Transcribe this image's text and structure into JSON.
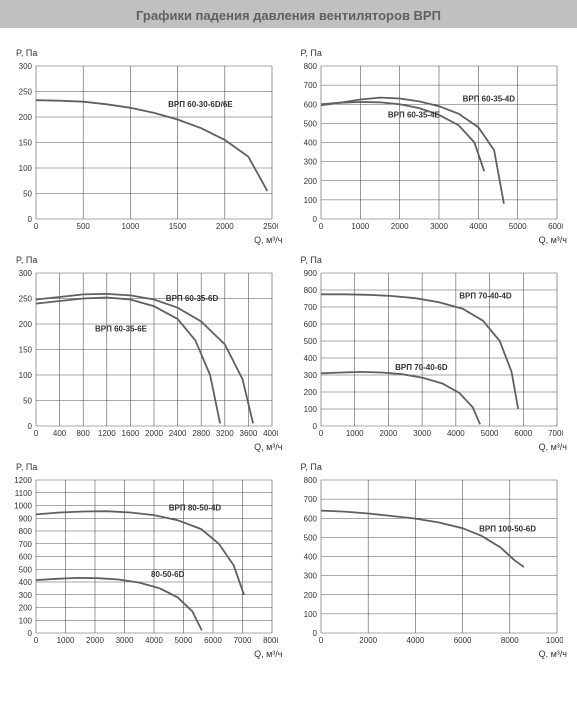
{
  "title": "Графики падения давления вентиляторов ВРП",
  "layout": {
    "cols": 2,
    "rows": 3
  },
  "axis_label_y": "P, Па",
  "axis_label_x": "Q, м³/ч",
  "chart_styling": {
    "background_color": "#ffffff",
    "grid_color": "#555555",
    "curve_color": "#606060",
    "curve_width": 1.8,
    "tick_fontsize": 8,
    "label_fontsize": 9,
    "title_bg": "#c0c0c0",
    "title_color": "#606060"
  },
  "charts": [
    {
      "id": "c1",
      "xlim": [
        0,
        2500
      ],
      "xtick_step": 500,
      "ylim": [
        0,
        300
      ],
      "ytick_step": 50,
      "series": [
        {
          "label": "ВРП 60-30-6D/6E",
          "label_xy": [
            1400,
            220
          ],
          "points": [
            [
              0,
              233
            ],
            [
              250,
              232
            ],
            [
              500,
              230
            ],
            [
              750,
              225
            ],
            [
              1000,
              218
            ],
            [
              1250,
              208
            ],
            [
              1500,
              195
            ],
            [
              1750,
              178
            ],
            [
              2000,
              155
            ],
            [
              2250,
              122
            ],
            [
              2450,
              55
            ]
          ]
        }
      ]
    },
    {
      "id": "c2",
      "xlim": [
        0,
        6000
      ],
      "xtick_step": 1000,
      "ylim": [
        0,
        800
      ],
      "ytick_step": 100,
      "series": [
        {
          "label": "ВРП 60-35-4D",
          "label_xy": [
            3600,
            615
          ],
          "points": [
            [
              0,
              595
            ],
            [
              500,
              608
            ],
            [
              1000,
              625
            ],
            [
              1500,
              635
            ],
            [
              2000,
              630
            ],
            [
              2500,
              615
            ],
            [
              3000,
              590
            ],
            [
              3500,
              550
            ],
            [
              4000,
              480
            ],
            [
              4400,
              360
            ],
            [
              4650,
              80
            ]
          ]
        },
        {
          "label": "ВРП 60-35-4E",
          "label_xy": [
            1700,
            530
          ],
          "points": [
            [
              0,
              600
            ],
            [
              500,
              608
            ],
            [
              1000,
              612
            ],
            [
              1500,
              610
            ],
            [
              2000,
              600
            ],
            [
              2500,
              580
            ],
            [
              3000,
              545
            ],
            [
              3500,
              490
            ],
            [
              3900,
              400
            ],
            [
              4150,
              250
            ]
          ]
        }
      ]
    },
    {
      "id": "c3",
      "xlim": [
        0,
        4000
      ],
      "xtick_step": 400,
      "ylim": [
        0,
        300
      ],
      "ytick_step": 50,
      "series": [
        {
          "label": "ВРП 60-35-6D",
          "label_xy": [
            2200,
            245
          ],
          "points": [
            [
              0,
              248
            ],
            [
              400,
              253
            ],
            [
              800,
              258
            ],
            [
              1200,
              259
            ],
            [
              1600,
              256
            ],
            [
              2000,
              248
            ],
            [
              2400,
              232
            ],
            [
              2800,
              205
            ],
            [
              3200,
              160
            ],
            [
              3500,
              92
            ],
            [
              3680,
              5
            ]
          ]
        },
        {
          "label": "ВРП 60-35-6E",
          "label_xy": [
            1000,
            185
          ],
          "points": [
            [
              0,
              240
            ],
            [
              400,
              245
            ],
            [
              800,
              250
            ],
            [
              1200,
              252
            ],
            [
              1600,
              248
            ],
            [
              2000,
              235
            ],
            [
              2400,
              210
            ],
            [
              2700,
              168
            ],
            [
              2950,
              100
            ],
            [
              3120,
              5
            ]
          ]
        }
      ]
    },
    {
      "id": "c4",
      "xlim": [
        0,
        7000
      ],
      "xtick_step": 1000,
      "ylim": [
        0,
        900
      ],
      "ytick_step": 100,
      "series": [
        {
          "label": "ВРП 70-40-4D",
          "label_xy": [
            4100,
            750
          ],
          "points": [
            [
              0,
              775
            ],
            [
              700,
              775
            ],
            [
              1400,
              772
            ],
            [
              2100,
              765
            ],
            [
              2800,
              752
            ],
            [
              3500,
              728
            ],
            [
              4200,
              690
            ],
            [
              4800,
              620
            ],
            [
              5300,
              500
            ],
            [
              5650,
              320
            ],
            [
              5850,
              100
            ]
          ]
        },
        {
          "label": "ВРП 70-40-6D",
          "label_xy": [
            2200,
            330
          ],
          "points": [
            [
              0,
              310
            ],
            [
              600,
              315
            ],
            [
              1200,
              318
            ],
            [
              1800,
              315
            ],
            [
              2400,
              305
            ],
            [
              3000,
              285
            ],
            [
              3600,
              250
            ],
            [
              4100,
              195
            ],
            [
              4500,
              110
            ],
            [
              4720,
              10
            ]
          ]
        }
      ]
    },
    {
      "id": "c5",
      "xlim": [
        0,
        8000
      ],
      "xtick_step": 1000,
      "ylim": [
        0,
        1200
      ],
      "ytick_step": 100,
      "series": [
        {
          "label": "ВРП 80-50-4D",
          "label_xy": [
            4500,
            960
          ],
          "points": [
            [
              0,
              930
            ],
            [
              800,
              945
            ],
            [
              1600,
              953
            ],
            [
              2400,
              955
            ],
            [
              3200,
              945
            ],
            [
              4000,
              925
            ],
            [
              4800,
              885
            ],
            [
              5600,
              815
            ],
            [
              6200,
              700
            ],
            [
              6700,
              530
            ],
            [
              7050,
              300
            ]
          ]
        },
        {
          "label": "80-50-6D",
          "label_xy": [
            3900,
            440
          ],
          "points": [
            [
              0,
              415
            ],
            [
              700,
              425
            ],
            [
              1400,
              432
            ],
            [
              2100,
              430
            ],
            [
              2800,
              420
            ],
            [
              3500,
              395
            ],
            [
              4200,
              350
            ],
            [
              4800,
              280
            ],
            [
              5300,
              170
            ],
            [
              5620,
              20
            ]
          ]
        }
      ]
    },
    {
      "id": "c6",
      "xlim": [
        0,
        10000
      ],
      "xtick_step": 2000,
      "ylim": [
        0,
        800
      ],
      "ytick_step": 100,
      "series": [
        {
          "label": "ВРП 100-50-6D",
          "label_xy": [
            6700,
            530
          ],
          "points": [
            [
              0,
              640
            ],
            [
              1000,
              635
            ],
            [
              2000,
              625
            ],
            [
              3000,
              612
            ],
            [
              4000,
              598
            ],
            [
              5000,
              578
            ],
            [
              6000,
              548
            ],
            [
              6800,
              508
            ],
            [
              7600,
              448
            ],
            [
              8200,
              380
            ],
            [
              8600,
              345
            ]
          ]
        }
      ]
    }
  ]
}
